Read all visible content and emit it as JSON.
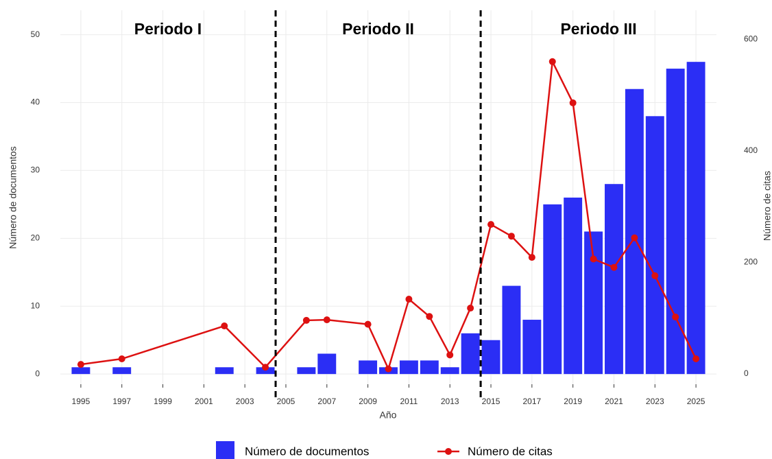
{
  "chart_data": {
    "type": "bar-line",
    "x_label": "Año",
    "y_label": "Número de documentos",
    "y2_label": "Número de citas",
    "x": [
      1995,
      1997,
      2002,
      2004,
      2006,
      2007,
      2009,
      2010,
      2011,
      2012,
      2013,
      2014,
      2015,
      2016,
      2017,
      2018,
      2019,
      2020,
      2021,
      2022,
      2023,
      2024,
      2025
    ],
    "series": [
      {
        "name": "Número de documentos",
        "type": "bar",
        "color": "#2b2ef5",
        "values": [
          1,
          1,
          1,
          1,
          1,
          3,
          2,
          1,
          2,
          2,
          1,
          6,
          5,
          13,
          8,
          25,
          26,
          21,
          28,
          42,
          38,
          45,
          46
        ]
      },
      {
        "name": "Número de citas",
        "type": "line",
        "axis": "y2",
        "color": "#dd1111",
        "values": [
          17,
          27,
          86,
          12,
          96,
          97,
          89,
          9,
          134,
          103,
          34,
          118,
          268,
          247,
          209,
          560,
          486,
          206,
          191,
          244,
          176,
          102,
          27
        ]
      }
    ],
    "xlim": [
      1994,
      2026
    ],
    "xticks": [
      1995,
      1997,
      1999,
      2001,
      2003,
      2005,
      2007,
      2009,
      2011,
      2013,
      2015,
      2017,
      2019,
      2021,
      2023,
      2025
    ],
    "ylim": [
      -1.5,
      53.6
    ],
    "yticks": [
      0,
      10,
      20,
      30,
      40,
      50
    ],
    "y2lim": [
      -18.5,
      652
    ],
    "y2ticks": [
      0,
      200,
      400,
      600
    ],
    "period_breaks": [
      2004.5,
      2014.5
    ],
    "periods": [
      "Periodo I",
      "Periodo II",
      "Periodo III"
    ],
    "grid": true
  }
}
